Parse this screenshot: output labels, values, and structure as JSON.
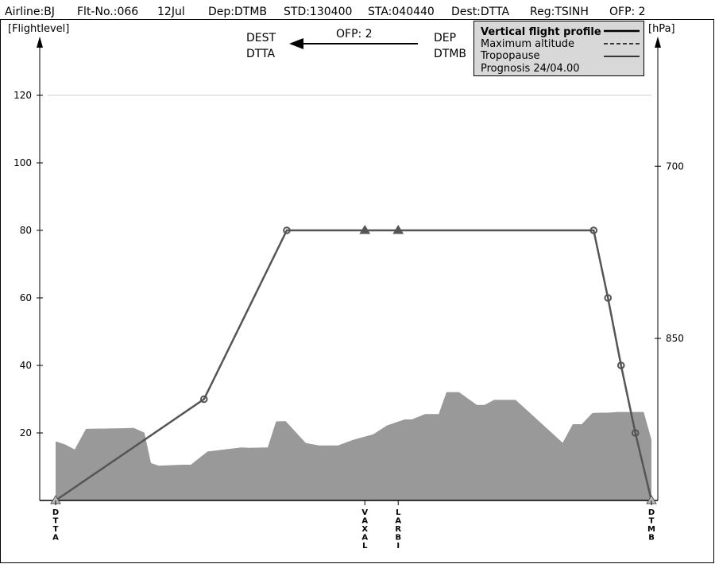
{
  "header": {
    "airline": "Airline:BJ",
    "flight_no": "Flt-No.:066",
    "date": "12Jul",
    "departure": "Dep:DTMB",
    "std": "STD:130400",
    "sta": "STA:040440",
    "destination": "Dest:DTTA",
    "registration": "Reg:TSINH",
    "ofp": "OFP: 2"
  },
  "direction": {
    "dest_label": "DEST",
    "dest_code": "DTTA",
    "ofp": "OFP: 2",
    "dep_label": "DEP",
    "dep_code": "DTMB"
  },
  "legend": {
    "profile": "Vertical flight profile",
    "max_alt": "Maximum altitude",
    "tropo": "Tropopause",
    "prognosis": "Prognosis  24/04.00"
  },
  "colors": {
    "terrain": "#999999",
    "profile_line": "#555555",
    "axis": "#000000",
    "grid": "#d0d0d0"
  },
  "chart_data": {
    "type": "line",
    "ylabel_left": "[Flightlevel]",
    "ylabel_right": "[hPa]",
    "yticks_left": [
      20,
      40,
      60,
      80,
      100,
      120
    ],
    "yticks_left_labels": [
      "20",
      "40",
      "60",
      "80",
      "100",
      "120"
    ],
    "ylim": [
      0,
      135
    ],
    "xlim": [
      0,
      100
    ],
    "yticks_right": [
      {
        "label": "700",
        "fl": 99
      },
      {
        "label": "850",
        "fl": 48
      }
    ],
    "grid_lines": [
      120
    ],
    "waypoints": [
      {
        "name": "DTTA",
        "x": 0
      },
      {
        "name": "VAXAL",
        "x": 51.9
      },
      {
        "name": "LARBI",
        "x": 57.5
      },
      {
        "name": "DTMB",
        "x": 100
      }
    ],
    "flight_profile": {
      "x": [
        0,
        24.9,
        38.8,
        51.9,
        57.5,
        90.3,
        92.7,
        94.9,
        97.3,
        100
      ],
      "fl": [
        0,
        30,
        80,
        80,
        80,
        80,
        60,
        40,
        20,
        0
      ],
      "markers": [
        "triangle",
        "circle",
        "circle",
        "triangle",
        "triangle",
        "circle",
        "circle",
        "circle",
        "circle",
        "triangle"
      ]
    },
    "terrain": {
      "x": [
        0,
        1.6,
        3.2,
        5.1,
        8.3,
        11.7,
        13.1,
        14.9,
        16.0,
        17.3,
        21.3,
        22.7,
        25.5,
        31.2,
        32.5,
        35.6,
        37.0,
        38.6,
        42.0,
        44.2,
        45.2,
        47.4,
        50.0,
        53.3,
        55.6,
        58.6,
        59.8,
        62.0,
        64.3,
        65.6,
        67.7,
        70.7,
        72.0,
        73.6,
        74.7,
        77.2,
        85.1,
        86.8,
        88.3,
        90.1,
        91.5,
        92.8,
        94.3,
        98.7,
        100
      ],
      "fl": [
        17.5,
        16.6,
        15.1,
        21.2,
        21.3,
        21.4,
        21.5,
        20.1,
        11.1,
        10.3,
        10.6,
        10.6,
        14.5,
        15.7,
        15.6,
        15.7,
        23.4,
        23.5,
        17.0,
        16.3,
        16.3,
        16.3,
        18.0,
        19.6,
        22.2,
        24.0,
        24.0,
        25.6,
        25.6,
        32.1,
        32.1,
        28.3,
        28.3,
        29.8,
        29.8,
        29.8,
        17.1,
        22.6,
        22.6,
        25.9,
        26.0,
        26.0,
        26.2,
        26.2,
        18.0
      ]
    }
  }
}
